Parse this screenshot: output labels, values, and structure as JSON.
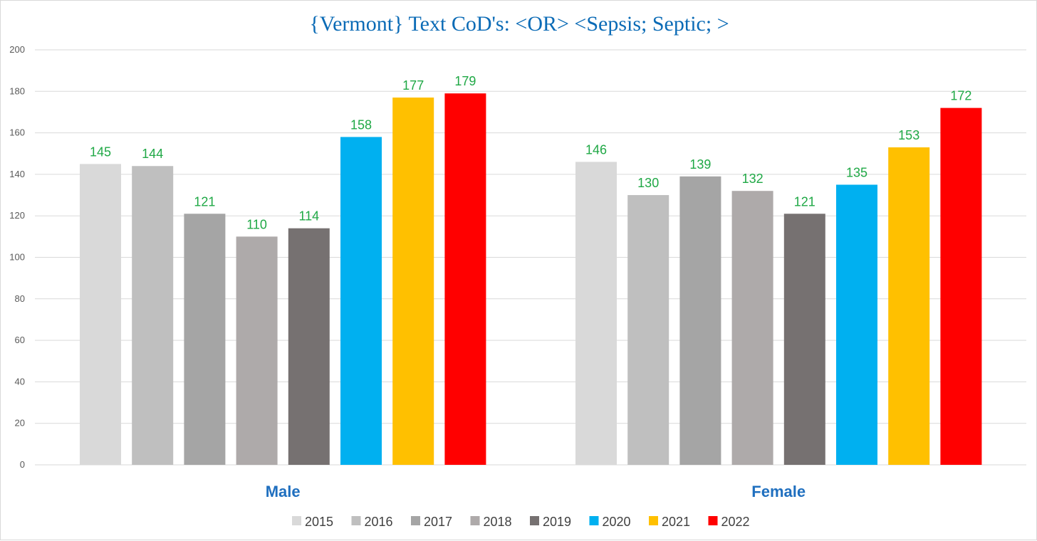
{
  "chart_data": {
    "type": "bar",
    "title": "{Vermont}  Text CoD's: <OR> <Sepsis; Septic; >",
    "xlabel": "",
    "ylabel": "",
    "ylim": [
      0,
      200
    ],
    "yticks": [
      0,
      20,
      40,
      60,
      80,
      100,
      120,
      140,
      160,
      180,
      200
    ],
    "grid": true,
    "legend": "bottom",
    "categories": [
      "Male",
      "Female"
    ],
    "series": [
      {
        "name": "2015",
        "color": "#d9d9d9",
        "values": [
          145,
          146
        ]
      },
      {
        "name": "2016",
        "color": "#bfbfbf",
        "values": [
          144,
          130
        ]
      },
      {
        "name": "2017",
        "color": "#a5a5a5",
        "values": [
          121,
          139
        ]
      },
      {
        "name": "2018",
        "color": "#aeaaaa",
        "values": [
          110,
          132
        ]
      },
      {
        "name": "2019",
        "color": "#767171",
        "values": [
          114,
          121
        ]
      },
      {
        "name": "2020",
        "color": "#00b0f0",
        "values": [
          158,
          135
        ]
      },
      {
        "name": "2021",
        "color": "#ffc000",
        "values": [
          177,
          153
        ]
      },
      {
        "name": "2022",
        "color": "#ff0000",
        "values": [
          179,
          172
        ]
      }
    ]
  }
}
